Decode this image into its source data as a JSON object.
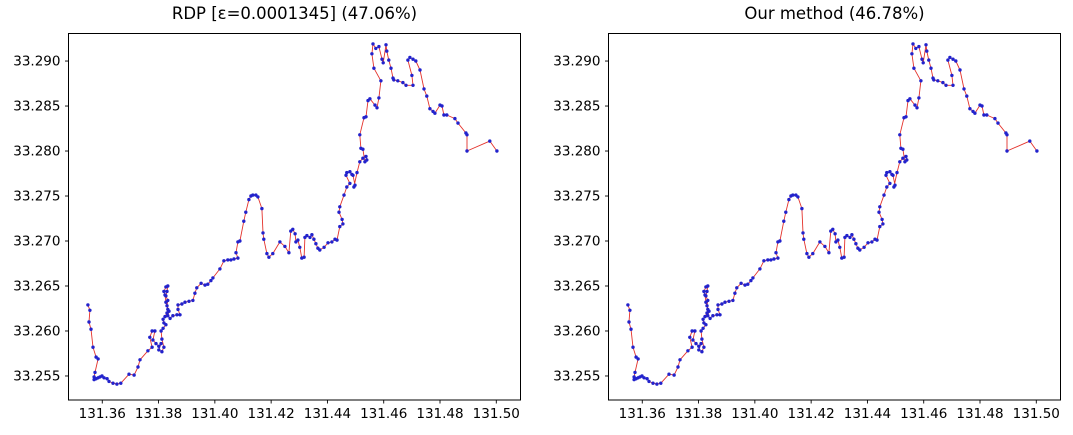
{
  "figure": {
    "background": "#ffffff",
    "text_color": "#000000"
  },
  "chart_data": {
    "type": "line",
    "layout": "1x2-subplots",
    "panels": [
      {
        "title": "RDP [ε=0.0001345] (47.06%)"
      },
      {
        "title": "Our method (46.78%)"
      }
    ],
    "shared": {
      "xlabel": "",
      "ylabel": "",
      "grid": false,
      "legend": null,
      "x_tick_labels": [
        "131.36",
        "131.38",
        "131.40",
        "131.42",
        "131.44",
        "131.46",
        "131.48",
        "131.50"
      ],
      "y_tick_labels": [
        "33.255",
        "33.260",
        "33.265",
        "33.270",
        "33.275",
        "33.280",
        "33.285",
        "33.290"
      ],
      "xlim": [
        131.348,
        131.5086
      ],
      "ylim": [
        33.25233,
        33.29306
      ],
      "line_color": "#e4322b",
      "marker_color": "#2222cc",
      "marker": "point",
      "points": [
        [
          131.3549,
          33.2629
        ],
        [
          131.3556,
          33.2623
        ],
        [
          131.3553,
          33.261
        ],
        [
          131.356,
          33.2602
        ],
        [
          131.3567,
          33.2582
        ],
        [
          131.3578,
          33.2571
        ],
        [
          131.3585,
          33.2569
        ],
        [
          131.3574,
          33.2554
        ],
        [
          131.3571,
          33.2549
        ],
        [
          131.3571,
          33.2546
        ],
        [
          131.3578,
          33.2547
        ],
        [
          131.3585,
          33.2548
        ],
        [
          131.3592,
          33.2549
        ],
        [
          131.3599,
          33.255
        ],
        [
          131.3606,
          33.2548
        ],
        [
          131.3617,
          33.2547
        ],
        [
          131.3624,
          33.2544
        ],
        [
          131.3638,
          33.2542
        ],
        [
          131.3652,
          33.2541
        ],
        [
          131.3666,
          33.2542
        ],
        [
          131.3695,
          33.2552
        ],
        [
          131.3713,
          33.2551
        ],
        [
          131.3727,
          33.256
        ],
        [
          131.3734,
          33.2568
        ],
        [
          131.3762,
          33.2578
        ],
        [
          131.3777,
          33.2582
        ],
        [
          131.3769,
          33.2593
        ],
        [
          131.3777,
          33.26
        ],
        [
          131.3787,
          33.26
        ],
        [
          131.378,
          33.259
        ],
        [
          131.3791,
          33.2586
        ],
        [
          131.3801,
          33.2583
        ],
        [
          131.3809,
          33.2586
        ],
        [
          131.3801,
          33.2579
        ],
        [
          131.3812,
          33.2577
        ],
        [
          131.3819,
          33.2582
        ],
        [
          131.3812,
          33.2591
        ],
        [
          131.3809,
          33.26
        ],
        [
          131.3816,
          33.2603
        ],
        [
          131.3826,
          33.2607
        ],
        [
          131.3819,
          33.2609
        ],
        [
          131.3816,
          33.2613
        ],
        [
          131.3823,
          33.2616
        ],
        [
          131.383,
          33.262
        ],
        [
          131.3833,
          33.2624
        ],
        [
          131.3826,
          33.2632
        ],
        [
          131.3823,
          33.264
        ],
        [
          131.3819,
          33.2644
        ],
        [
          131.3826,
          33.2649
        ],
        [
          131.3833,
          33.265
        ],
        [
          131.383,
          33.2644
        ],
        [
          131.3826,
          33.2639
        ],
        [
          131.3833,
          33.2634
        ],
        [
          131.383,
          33.2628
        ],
        [
          131.3837,
          33.2622
        ],
        [
          131.3833,
          33.2617
        ],
        [
          131.3841,
          33.2614
        ],
        [
          131.3851,
          33.2617
        ],
        [
          131.3865,
          33.2618
        ],
        [
          131.3876,
          33.2618
        ],
        [
          131.3869,
          33.2624
        ],
        [
          131.3869,
          33.2629
        ],
        [
          131.3883,
          33.263
        ],
        [
          131.3894,
          33.2632
        ],
        [
          131.3908,
          33.2633
        ],
        [
          131.3922,
          33.2634
        ],
        [
          131.3929,
          33.2642
        ],
        [
          131.3936,
          33.2648
        ],
        [
          131.3951,
          33.2653
        ],
        [
          131.3965,
          33.2651
        ],
        [
          131.3975,
          33.2652
        ],
        [
          131.3986,
          33.2656
        ],
        [
          131.3993,
          33.2659
        ],
        [
          131.4018,
          33.2669
        ],
        [
          131.4032,
          33.2678
        ],
        [
          131.4046,
          33.2679
        ],
        [
          131.4057,
          33.2679
        ],
        [
          131.4068,
          33.268
        ],
        [
          131.4082,
          33.2681
        ],
        [
          131.4075,
          33.2687
        ],
        [
          131.4082,
          33.2699
        ],
        [
          131.4089,
          33.27
        ],
        [
          131.4103,
          33.2722
        ],
        [
          131.411,
          33.2732
        ],
        [
          131.4121,
          33.2746
        ],
        [
          131.4128,
          33.275
        ],
        [
          131.4135,
          33.2751
        ],
        [
          131.4146,
          33.2751
        ],
        [
          131.4153,
          33.2749
        ],
        [
          131.4167,
          33.2736
        ],
        [
          131.4171,
          33.2709
        ],
        [
          131.4174,
          33.2702
        ],
        [
          131.4185,
          33.2686
        ],
        [
          131.4192,
          33.2682
        ],
        [
          131.4206,
          33.2686
        ],
        [
          131.4231,
          33.2699
        ],
        [
          131.4249,
          33.2694
        ],
        [
          131.4263,
          33.2687
        ],
        [
          131.427,
          33.2711
        ],
        [
          131.4277,
          33.2713
        ],
        [
          131.4285,
          33.2708
        ],
        [
          131.4288,
          33.2699
        ],
        [
          131.4295,
          33.2701
        ],
        [
          131.4302,
          33.2693
        ],
        [
          131.4309,
          33.2681
        ],
        [
          131.4317,
          33.2682
        ],
        [
          131.432,
          33.2704
        ],
        [
          131.4327,
          33.2706
        ],
        [
          131.4338,
          33.2704
        ],
        [
          131.4345,
          33.2707
        ],
        [
          131.4352,
          33.2702
        ],
        [
          131.4359,
          33.2697
        ],
        [
          131.4366,
          33.2692
        ],
        [
          131.4373,
          33.269
        ],
        [
          131.4388,
          33.2693
        ],
        [
          131.4402,
          33.2698
        ],
        [
          131.4416,
          33.2699
        ],
        [
          131.4427,
          33.2702
        ],
        [
          131.4434,
          33.2701
        ],
        [
          131.4444,
          33.2716
        ],
        [
          131.4455,
          33.2719
        ],
        [
          131.4452,
          33.2724
        ],
        [
          131.4441,
          33.2732
        ],
        [
          131.4444,
          33.2738
        ],
        [
          131.4459,
          33.2751
        ],
        [
          131.4469,
          33.276
        ],
        [
          131.448,
          33.2764
        ],
        [
          131.4466,
          33.2773
        ],
        [
          131.4469,
          33.2776
        ],
        [
          131.448,
          33.2777
        ],
        [
          131.4487,
          33.2774
        ],
        [
          131.4491,
          33.2773
        ],
        [
          131.4498,
          33.2762
        ],
        [
          131.4494,
          33.276
        ],
        [
          131.4505,
          33.2776
        ],
        [
          131.4515,
          33.2788
        ],
        [
          131.4526,
          33.2792
        ],
        [
          131.4537,
          33.2794
        ],
        [
          131.454,
          33.279
        ],
        [
          131.4533,
          33.2788
        ],
        [
          131.4526,
          33.2802
        ],
        [
          131.4519,
          33.2803
        ],
        [
          131.4515,
          33.2818
        ],
        [
          131.453,
          33.2837
        ],
        [
          131.4537,
          33.2838
        ],
        [
          131.4544,
          33.2856
        ],
        [
          131.4551,
          33.2858
        ],
        [
          131.4569,
          33.2851
        ],
        [
          131.4576,
          33.2848
        ],
        [
          131.4583,
          33.2859
        ],
        [
          131.459,
          33.2878
        ],
        [
          131.4565,
          33.2892
        ],
        [
          131.4558,
          33.2908
        ],
        [
          131.4562,
          33.2919
        ],
        [
          131.4572,
          33.2914
        ],
        [
          131.4583,
          33.2916
        ],
        [
          131.4594,
          33.2902
        ],
        [
          131.4598,
          33.2898
        ],
        [
          131.4608,
          33.2918
        ],
        [
          131.4611,
          33.2911
        ],
        [
          131.4618,
          33.2901
        ],
        [
          131.4626,
          33.2892
        ],
        [
          131.4633,
          33.2881
        ],
        [
          131.4636,
          33.2879
        ],
        [
          131.465,
          33.2878
        ],
        [
          131.4668,
          33.2876
        ],
        [
          131.4679,
          33.2873
        ],
        [
          131.4704,
          33.2873
        ],
        [
          131.47,
          33.2884
        ],
        [
          131.4686,
          33.2901
        ],
        [
          131.4693,
          33.2904
        ],
        [
          131.4704,
          33.2902
        ],
        [
          131.4714,
          33.29
        ],
        [
          131.4729,
          33.289
        ],
        [
          131.4743,
          33.2869
        ],
        [
          131.4753,
          33.2861
        ],
        [
          131.4764,
          33.2847
        ],
        [
          131.4775,
          33.2844
        ],
        [
          131.4782,
          33.2842
        ],
        [
          131.48,
          33.2851
        ],
        [
          131.4807,
          33.285
        ],
        [
          131.4814,
          33.284
        ],
        [
          131.4824,
          33.284
        ],
        [
          131.4853,
          33.2836
        ],
        [
          131.4864,
          33.2831
        ],
        [
          131.4892,
          33.282
        ],
        [
          131.4896,
          33.2818
        ],
        [
          131.4896,
          33.28
        ],
        [
          131.4977,
          33.2811
        ],
        [
          131.5002,
          33.28
        ]
      ]
    }
  }
}
